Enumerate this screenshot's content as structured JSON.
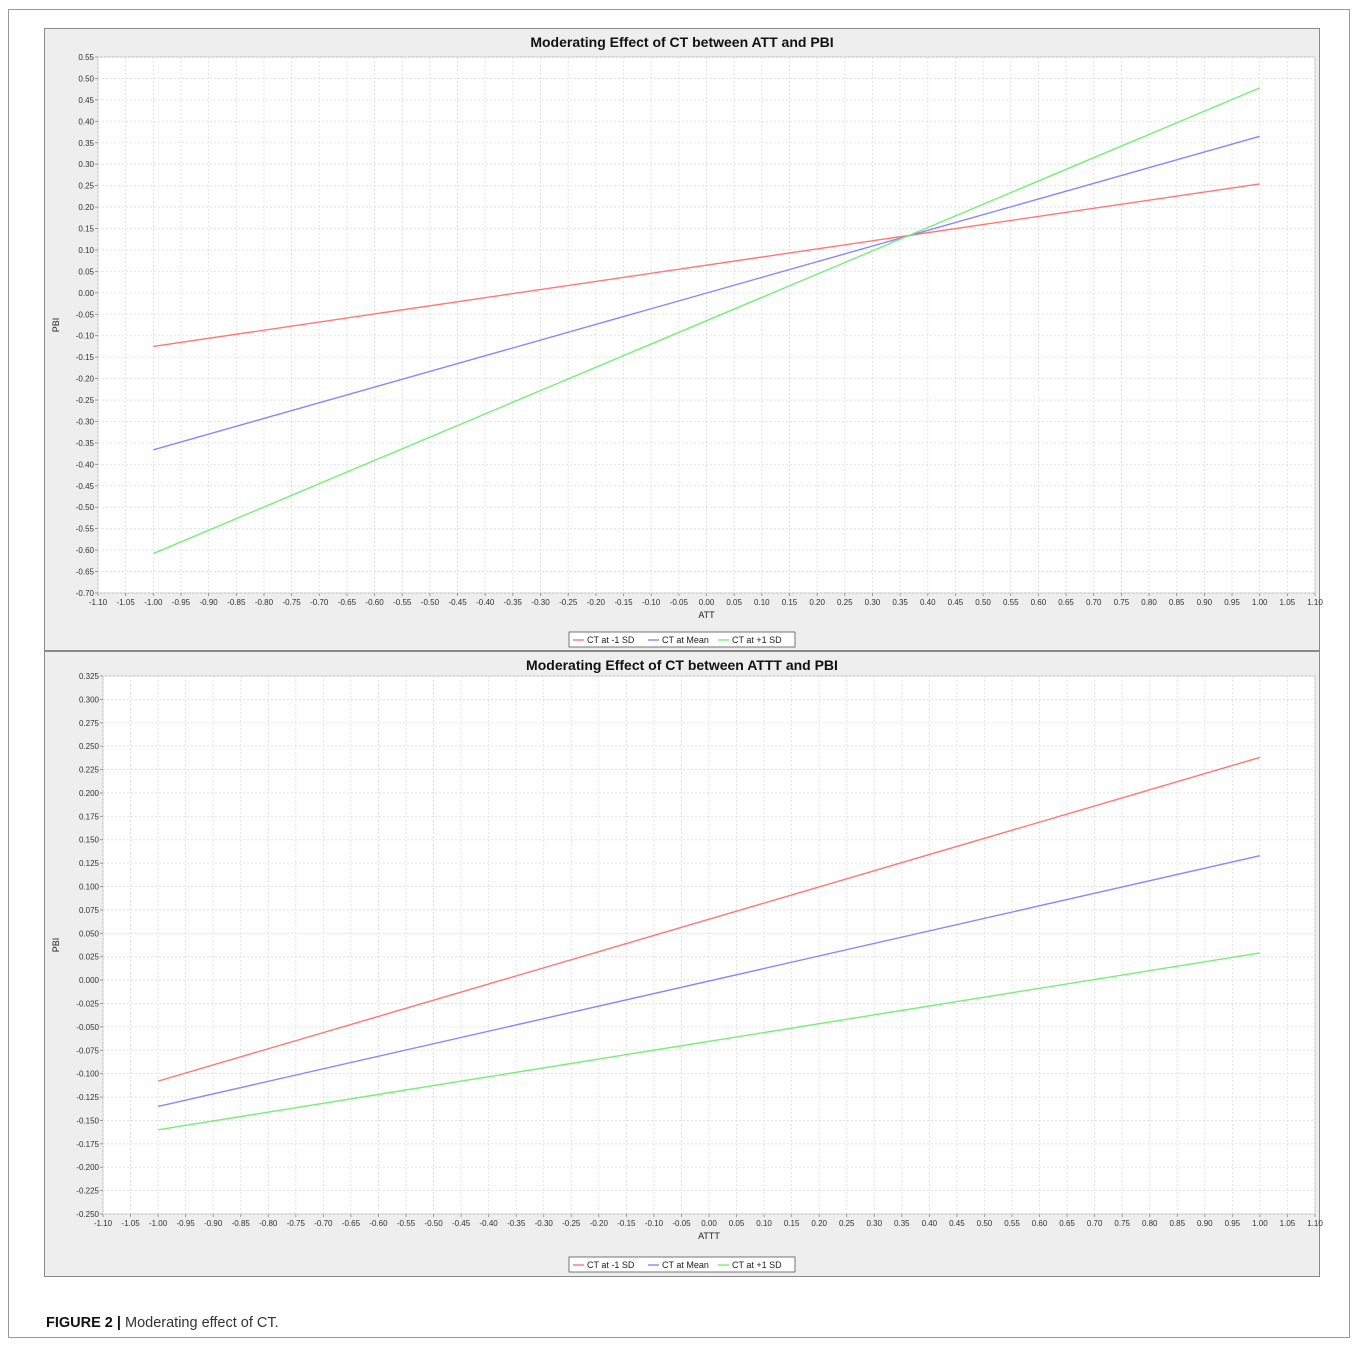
{
  "caption": {
    "label": "FIGURE 2 |",
    "text": " Moderating effect of CT."
  },
  "chart_data": [
    {
      "type": "line",
      "title": "Moderating Effect of CT between ATT and PBI",
      "xlabel": "ATT",
      "ylabel": "PBI",
      "xlim": [
        -1.1,
        1.1
      ],
      "ylim": [
        -0.7,
        0.55
      ],
      "xticks": [
        "-1.10",
        "-1.05",
        "-1.00",
        "-0.95",
        "-0.90",
        "-0.85",
        "-0.80",
        "-0.75",
        "-0.70",
        "-0.65",
        "-0.60",
        "-0.55",
        "-0.50",
        "-0.45",
        "-0.40",
        "-0.35",
        "-0.30",
        "-0.25",
        "-0.20",
        "-0.15",
        "-0.10",
        "-0.05",
        "0.00",
        "0.05",
        "0.10",
        "0.15",
        "0.20",
        "0.25",
        "0.30",
        "0.35",
        "0.40",
        "0.45",
        "0.50",
        "0.55",
        "0.60",
        "0.65",
        "0.70",
        "0.75",
        "0.80",
        "0.85",
        "0.90",
        "0.95",
        "1.00",
        "1.05",
        "1.10"
      ],
      "yticks": [
        "0.55",
        "0.50",
        "0.45",
        "0.40",
        "0.35",
        "0.30",
        "0.25",
        "0.20",
        "0.15",
        "0.10",
        "0.05",
        "0.00",
        "-0.05",
        "-0.10",
        "-0.15",
        "-0.20",
        "-0.25",
        "-0.30",
        "-0.35",
        "-0.40",
        "-0.45",
        "-0.50",
        "-0.55",
        "-0.60",
        "-0.65",
        "-0.70"
      ],
      "grid": true,
      "legend_position": "bottom",
      "series": [
        {
          "name": "CT at -1 SD",
          "color": "#ff7777",
          "x": [
            -1.0,
            1.0
          ],
          "y": [
            -0.125,
            0.254
          ]
        },
        {
          "name": "CT at Mean",
          "color": "#8888ff",
          "x": [
            -1.0,
            1.0
          ],
          "y": [
            -0.366,
            0.365
          ]
        },
        {
          "name": "CT at +1 SD",
          "color": "#77ee77",
          "x": [
            -1.0,
            1.0
          ],
          "y": [
            -0.608,
            0.478
          ]
        }
      ]
    },
    {
      "type": "line",
      "title": "Moderating Effect of CT between ATTT and PBI",
      "xlabel": "ATTT",
      "ylabel": "PBI",
      "xlim": [
        -1.1,
        1.1
      ],
      "ylim": [
        -0.25,
        0.325
      ],
      "xticks": [
        "-1.10",
        "-1.05",
        "-1.00",
        "-0.95",
        "-0.90",
        "-0.85",
        "-0.80",
        "-0.75",
        "-0.70",
        "-0.65",
        "-0.60",
        "-0.55",
        "-0.50",
        "-0.45",
        "-0.40",
        "-0.35",
        "-0.30",
        "-0.25",
        "-0.20",
        "-0.15",
        "-0.10",
        "-0.05",
        "0.00",
        "0.05",
        "0.10",
        "0.15",
        "0.20",
        "0.25",
        "0.30",
        "0.35",
        "0.40",
        "0.45",
        "0.50",
        "0.55",
        "0.60",
        "0.65",
        "0.70",
        "0.75",
        "0.80",
        "0.85",
        "0.90",
        "0.95",
        "1.00",
        "1.05",
        "1.10"
      ],
      "yticks": [
        "0.325",
        "0.300",
        "0.275",
        "0.250",
        "0.225",
        "0.200",
        "0.175",
        "0.150",
        "0.125",
        "0.100",
        "0.075",
        "0.050",
        "0.025",
        "0.000",
        "-0.025",
        "-0.050",
        "-0.075",
        "-0.100",
        "-0.125",
        "-0.150",
        "-0.175",
        "-0.200",
        "-0.225",
        "-0.250"
      ],
      "grid": true,
      "legend_position": "bottom",
      "series": [
        {
          "name": "CT at -1 SD",
          "color": "#ff7777",
          "x": [
            -1.0,
            1.0
          ],
          "y": [
            -0.108,
            0.238
          ]
        },
        {
          "name": "CT at Mean",
          "color": "#8888ff",
          "x": [
            -1.0,
            1.0
          ],
          "y": [
            -0.135,
            0.133
          ]
        },
        {
          "name": "CT at +1 SD",
          "color": "#77ee77",
          "x": [
            -1.0,
            1.0
          ],
          "y": [
            -0.16,
            0.029
          ]
        }
      ]
    }
  ]
}
